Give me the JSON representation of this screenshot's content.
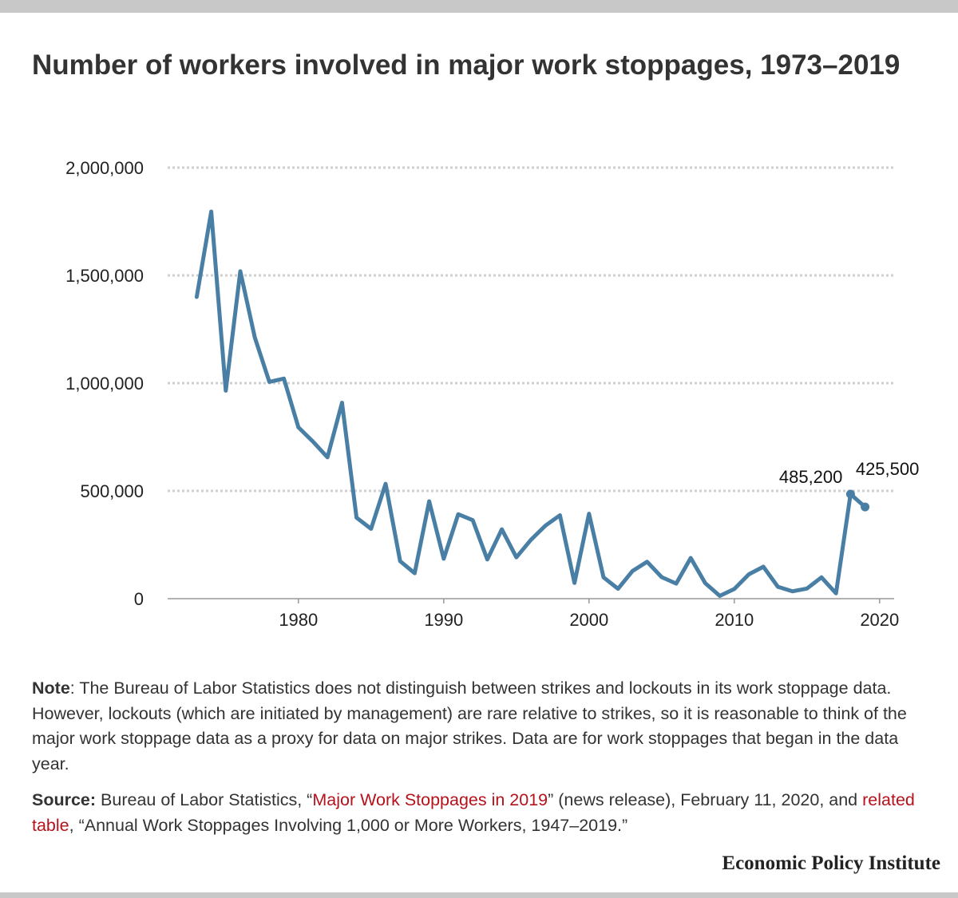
{
  "chart_data": {
    "type": "line",
    "title": "Number of workers involved in major work stoppages, 1973–2019",
    "xlabel": "",
    "ylabel": "",
    "x_ticks": [
      1980,
      1990,
      2000,
      2010,
      2020
    ],
    "y_ticks": [
      {
        "value": 0,
        "label": "0"
      },
      {
        "value": 500000,
        "label": "500,000"
      },
      {
        "value": 1000000,
        "label": "1,000,000"
      },
      {
        "value": 1500000,
        "label": "1,500,000"
      },
      {
        "value": 2000000,
        "label": "2,000,000"
      }
    ],
    "xlim": [
      1971,
      2021
    ],
    "ylim": [
      0,
      2000000
    ],
    "grid": true,
    "color": "#4a7fa5",
    "x": [
      1973,
      1974,
      1975,
      1976,
      1977,
      1978,
      1979,
      1980,
      1981,
      1982,
      1983,
      1984,
      1985,
      1986,
      1987,
      1988,
      1989,
      1990,
      1991,
      1992,
      1993,
      1994,
      1995,
      1996,
      1997,
      1998,
      1999,
      2000,
      2001,
      2002,
      2003,
      2004,
      2005,
      2006,
      2007,
      2008,
      2009,
      2010,
      2011,
      2012,
      2013,
      2014,
      2015,
      2016,
      2017,
      2018,
      2019
    ],
    "values": [
      1400000,
      1796000,
      965000,
      1519000,
      1212000,
      1006000,
      1021000,
      795000,
      729000,
      656000,
      909000,
      376000,
      324000,
      533000,
      174000,
      118000,
      452000,
      185000,
      392000,
      364000,
      182000,
      322000,
      192000,
      273000,
      339000,
      387000,
      73000,
      394000,
      99000,
      46000,
      129000,
      171000,
      100000,
      70000,
      189000,
      72000,
      13000,
      45000,
      113000,
      148000,
      55000,
      34000,
      47000,
      99000,
      25000,
      485200,
      425500
    ],
    "annotations": [
      {
        "x": 2018,
        "value": 485200,
        "label": "485,200"
      },
      {
        "x": 2019,
        "value": 425500,
        "label": "425,500"
      }
    ]
  },
  "note": {
    "label": "Note",
    "text": ": The Bureau of Labor Statistics does not distinguish between strikes and lockouts in its work stoppage data. However, lockouts (which are initiated by management) are rare relative to strikes, so it is reasonable to think of the major work stoppage data as a proxy for data on major strikes. Data are for work stoppages that began in the data year."
  },
  "source": {
    "label": "Source:",
    "text1": " Bureau of Labor Statistics, “",
    "link1": "Major Work Stoppages in 2019",
    "text2": "” (news release), February 11, 2020, and ",
    "link2": "related table",
    "text3": ", “Annual Work Stoppages Involving 1,000 or More Workers, 1947–2019.”"
  },
  "brand": "Economic Policy Institute"
}
